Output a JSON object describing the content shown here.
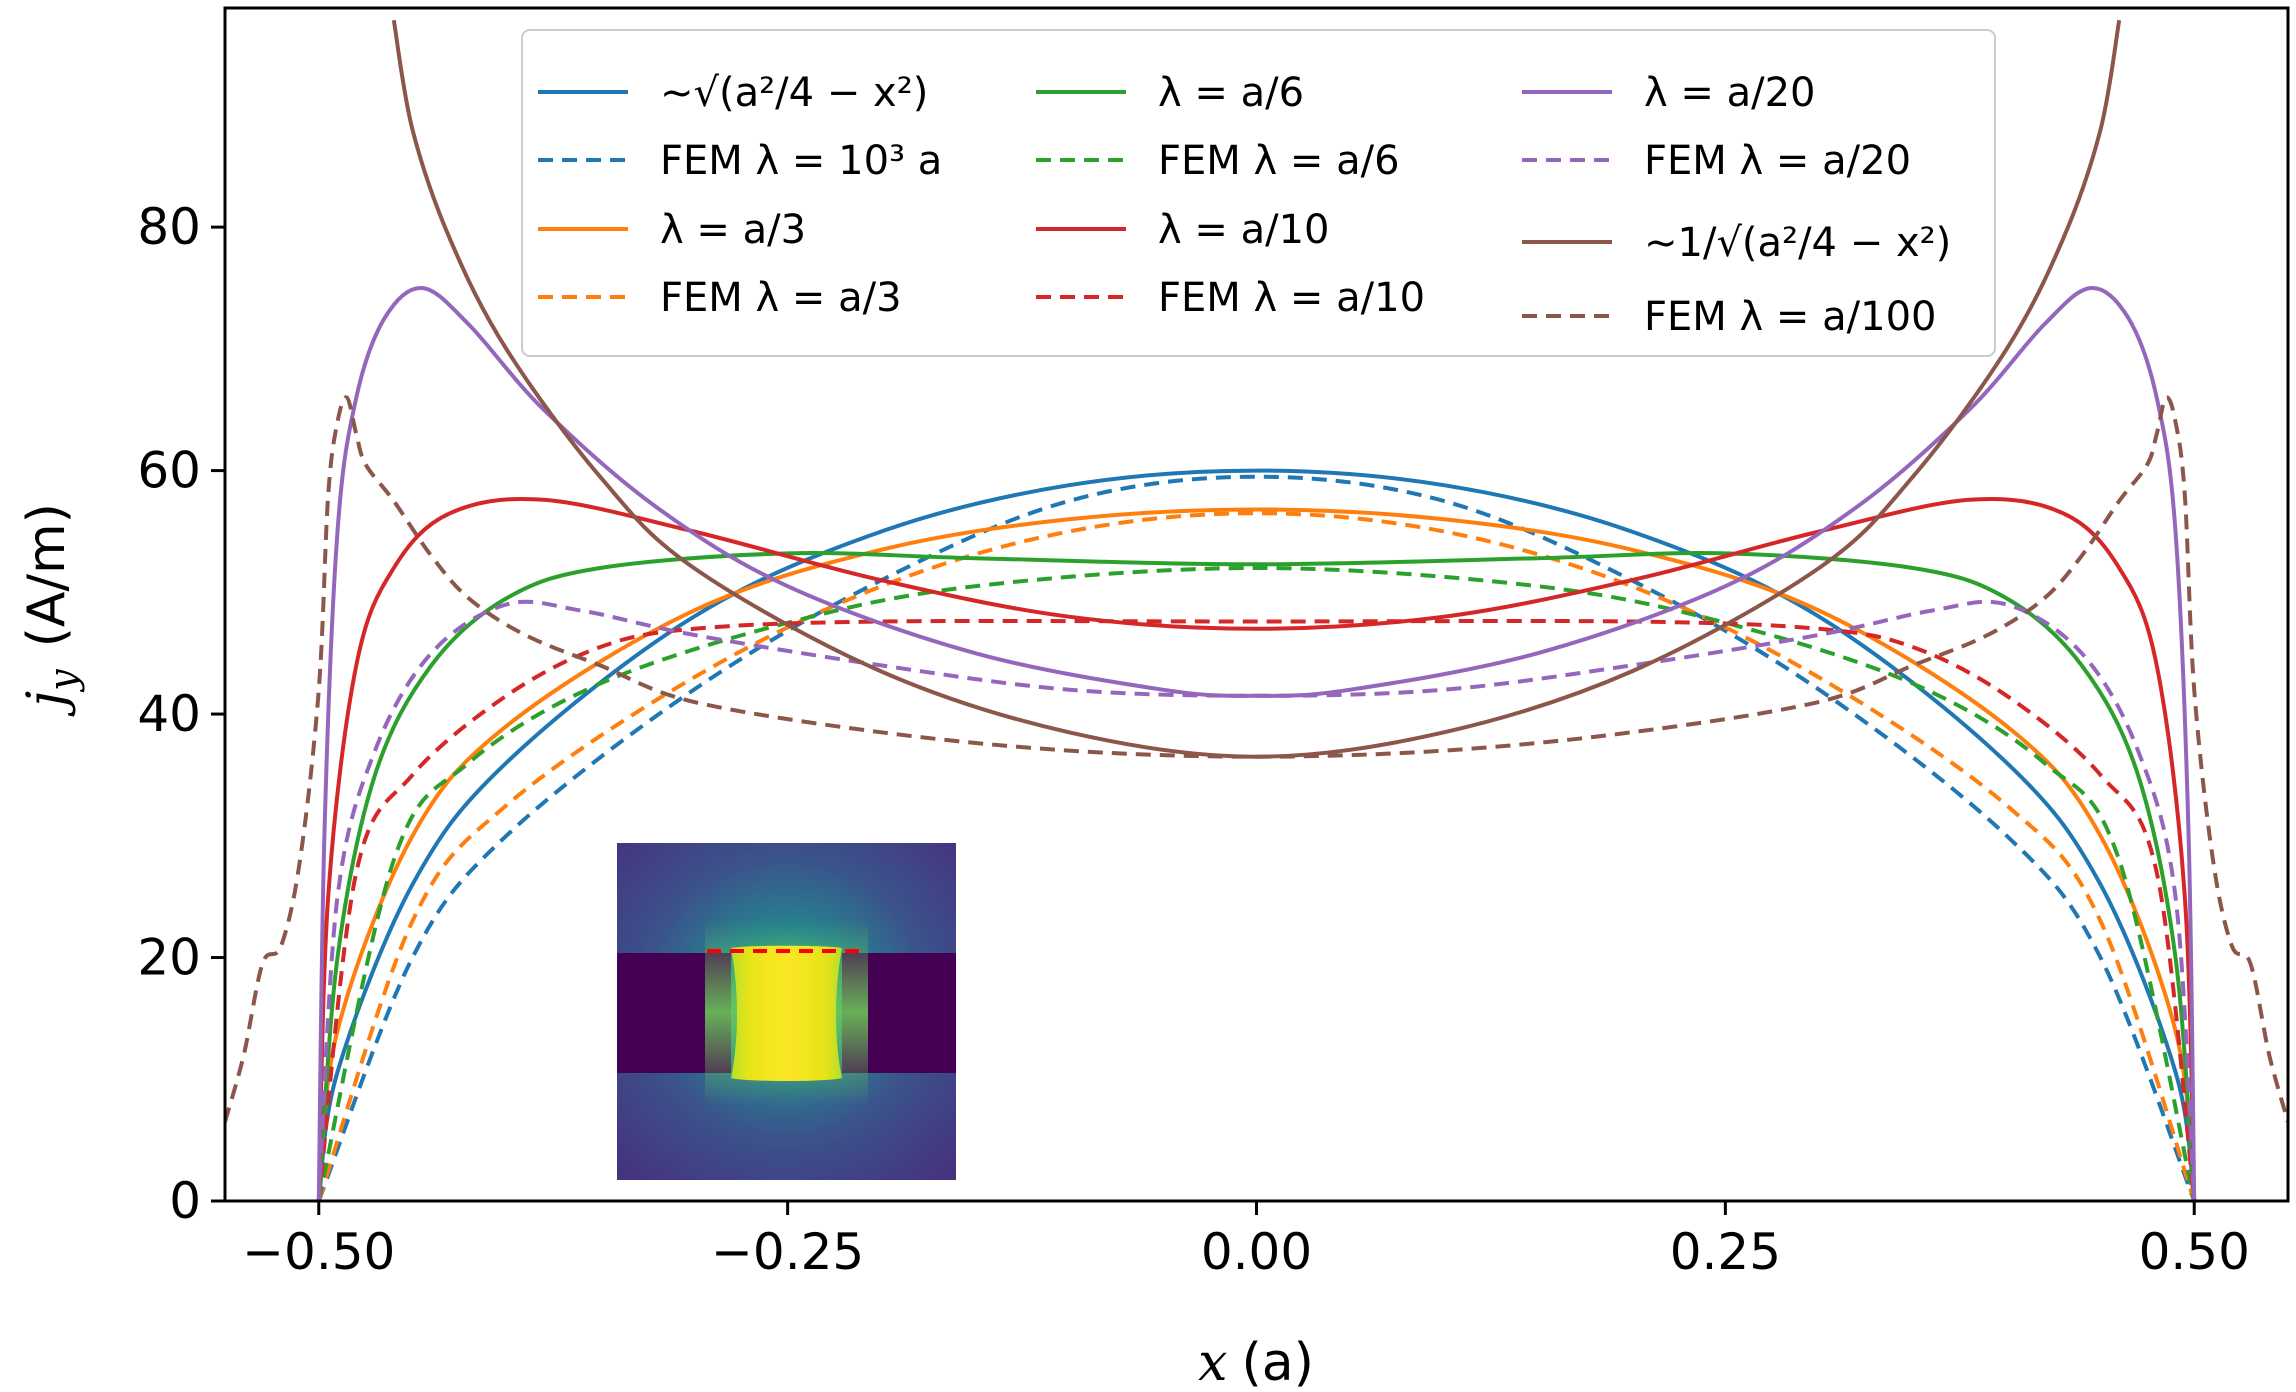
{
  "chart_data": {
    "type": "line",
    "xlabel_var": "x",
    "xlabel_unit": "(a)",
    "ylabel_var": "j",
    "ylabel_sub": "y",
    "ylabel_unit": "(A/m)",
    "xlim": [
      -0.55,
      0.55
    ],
    "ylim": [
      0,
      98
    ],
    "x_ticks": [
      -0.5,
      -0.25,
      0.0,
      0.25,
      0.5
    ],
    "x_tick_labels": [
      "−0.50",
      "−0.25",
      "0.00",
      "0.25",
      "0.50"
    ],
    "y_ticks": [
      0,
      20,
      40,
      60,
      80
    ],
    "y_tick_labels": [
      "0",
      "20",
      "40",
      "60",
      "80"
    ],
    "legend_position": "top",
    "series": [
      {
        "name": "~√(a²/4 − x²)",
        "color": "#1f77b4",
        "style": "solid",
        "samples": [
          [
            -0.5,
            0
          ],
          [
            -0.49,
            10.6
          ],
          [
            -0.45,
            26.0
          ],
          [
            -0.4,
            36.0
          ],
          [
            -0.3,
            48.0
          ],
          [
            -0.2,
            55.0
          ],
          [
            -0.1,
            58.8
          ],
          [
            0,
            60.0
          ],
          [
            0.1,
            58.8
          ],
          [
            0.2,
            55.0
          ],
          [
            0.3,
            48.0
          ],
          [
            0.4,
            36.0
          ],
          [
            0.45,
            26.0
          ],
          [
            0.49,
            10.6
          ],
          [
            0.5,
            0
          ]
        ]
      },
      {
        "name": "FEM λ = 10³ a",
        "color": "#1f77b4",
        "style": "dashed",
        "samples": [
          [
            -0.5,
            0
          ],
          [
            -0.45,
            20.0
          ],
          [
            -0.4,
            30.0
          ],
          [
            -0.3,
            42.0
          ],
          [
            -0.2,
            51.0
          ],
          [
            -0.1,
            57.5
          ],
          [
            0,
            59.5
          ],
          [
            0.1,
            57.5
          ],
          [
            0.2,
            51.0
          ],
          [
            0.3,
            42.0
          ],
          [
            0.4,
            30.0
          ],
          [
            0.45,
            20.0
          ],
          [
            0.5,
            0
          ]
        ]
      },
      {
        "name": "λ = a/3",
        "color": "#ff7f0e",
        "style": "solid",
        "samples": [
          [
            -0.5,
            0
          ],
          [
            -0.49,
            14.0
          ],
          [
            -0.45,
            30.0
          ],
          [
            -0.4,
            39.0
          ],
          [
            -0.3,
            48.5
          ],
          [
            -0.2,
            53.5
          ],
          [
            -0.1,
            56.0
          ],
          [
            0,
            56.8
          ],
          [
            0.1,
            56.0
          ],
          [
            0.2,
            53.5
          ],
          [
            0.3,
            48.5
          ],
          [
            0.4,
            39.0
          ],
          [
            0.45,
            30.0
          ],
          [
            0.49,
            14.0
          ],
          [
            0.5,
            0
          ]
        ]
      },
      {
        "name": "FEM λ = a/3",
        "color": "#ff7f0e",
        "style": "dashed",
        "samples": [
          [
            -0.5,
            0
          ],
          [
            -0.45,
            23.0
          ],
          [
            -0.4,
            32.5
          ],
          [
            -0.3,
            43.0
          ],
          [
            -0.2,
            50.5
          ],
          [
            -0.1,
            55.0
          ],
          [
            0,
            56.5
          ],
          [
            0.1,
            55.0
          ],
          [
            0.2,
            50.5
          ],
          [
            0.3,
            43.0
          ],
          [
            0.4,
            32.5
          ],
          [
            0.45,
            23.0
          ],
          [
            0.5,
            0
          ]
        ]
      },
      {
        "name": "λ = a/6",
        "color": "#2ca02c",
        "style": "solid",
        "samples": [
          [
            -0.5,
            0
          ],
          [
            -0.49,
            20.0
          ],
          [
            -0.47,
            35.0
          ],
          [
            -0.44,
            44.0
          ],
          [
            -0.4,
            49.5
          ],
          [
            -0.35,
            52.0
          ],
          [
            -0.25,
            53.2
          ],
          [
            -0.15,
            52.8
          ],
          [
            0,
            52.3
          ],
          [
            0.15,
            52.8
          ],
          [
            0.25,
            53.2
          ],
          [
            0.35,
            52.0
          ],
          [
            0.4,
            49.5
          ],
          [
            0.44,
            44.0
          ],
          [
            0.47,
            35.0
          ],
          [
            0.49,
            20.0
          ],
          [
            0.5,
            0
          ]
        ]
      },
      {
        "name": "FEM λ = a/6",
        "color": "#2ca02c",
        "style": "dashed",
        "samples": [
          [
            -0.5,
            0
          ],
          [
            -0.46,
            28.0
          ],
          [
            -0.42,
            36.0
          ],
          [
            -0.35,
            42.5
          ],
          [
            -0.25,
            47.5
          ],
          [
            -0.15,
            50.5
          ],
          [
            0,
            52.0
          ],
          [
            0.15,
            50.5
          ],
          [
            0.25,
            47.5
          ],
          [
            0.35,
            42.5
          ],
          [
            0.42,
            36.0
          ],
          [
            0.46,
            28.0
          ],
          [
            0.5,
            0
          ]
        ]
      },
      {
        "name": "λ = a/10",
        "color": "#d62728",
        "style": "solid",
        "samples": [
          [
            -0.5,
            0
          ],
          [
            -0.495,
            25.0
          ],
          [
            -0.48,
            44.0
          ],
          [
            -0.46,
            52.0
          ],
          [
            -0.43,
            56.5
          ],
          [
            -0.38,
            57.6
          ],
          [
            -0.3,
            55.0
          ],
          [
            -0.2,
            51.0
          ],
          [
            -0.1,
            48.0
          ],
          [
            0,
            47.0
          ],
          [
            0.1,
            48.0
          ],
          [
            0.2,
            51.0
          ],
          [
            0.3,
            55.0
          ],
          [
            0.38,
            57.6
          ],
          [
            0.43,
            56.5
          ],
          [
            0.46,
            52.0
          ],
          [
            0.48,
            44.0
          ],
          [
            0.495,
            25.0
          ],
          [
            0.5,
            0
          ]
        ]
      },
      {
        "name": "FEM λ = a/10",
        "color": "#d62728",
        "style": "dashed",
        "samples": [
          [
            -0.5,
            0
          ],
          [
            -0.48,
            27.0
          ],
          [
            -0.45,
            35.0
          ],
          [
            -0.4,
            41.5
          ],
          [
            -0.35,
            45.5
          ],
          [
            -0.3,
            47.0
          ],
          [
            -0.2,
            47.6
          ],
          [
            0,
            47.6
          ],
          [
            0.2,
            47.6
          ],
          [
            0.3,
            47.0
          ],
          [
            0.35,
            45.5
          ],
          [
            0.4,
            41.5
          ],
          [
            0.45,
            35.0
          ],
          [
            0.48,
            27.0
          ],
          [
            0.5,
            0
          ]
        ]
      },
      {
        "name": "λ = a/20",
        "color": "#9467bd",
        "style": "solid",
        "samples": [
          [
            -0.5,
            0
          ],
          [
            -0.497,
            30.0
          ],
          [
            -0.49,
            55.0
          ],
          [
            -0.48,
            66.0
          ],
          [
            -0.465,
            72.5
          ],
          [
            -0.445,
            75.0
          ],
          [
            -0.42,
            72.0
          ],
          [
            -0.38,
            65.0
          ],
          [
            -0.32,
            57.0
          ],
          [
            -0.25,
            50.5
          ],
          [
            -0.15,
            45.0
          ],
          [
            -0.05,
            42.0
          ],
          [
            0,
            41.5
          ],
          [
            0.05,
            42.0
          ],
          [
            0.15,
            45.0
          ],
          [
            0.25,
            50.5
          ],
          [
            0.32,
            57.0
          ],
          [
            0.38,
            65.0
          ],
          [
            0.42,
            72.0
          ],
          [
            0.445,
            75.0
          ],
          [
            0.465,
            72.5
          ],
          [
            0.48,
            66.0
          ],
          [
            0.49,
            55.0
          ],
          [
            0.497,
            30.0
          ],
          [
            0.5,
            0
          ]
        ]
      },
      {
        "name": "FEM λ = a/20",
        "color": "#9467bd",
        "style": "dashed",
        "samples": [
          [
            -0.5,
            0
          ],
          [
            -0.49,
            25.0
          ],
          [
            -0.47,
            37.0
          ],
          [
            -0.44,
            45.0
          ],
          [
            -0.4,
            49.0
          ],
          [
            -0.36,
            48.5
          ],
          [
            -0.3,
            46.5
          ],
          [
            -0.2,
            44.0
          ],
          [
            -0.1,
            42.0
          ],
          [
            0,
            41.5
          ],
          [
            0.1,
            42.0
          ],
          [
            0.2,
            44.0
          ],
          [
            0.3,
            46.5
          ],
          [
            0.36,
            48.5
          ],
          [
            0.4,
            49.0
          ],
          [
            0.44,
            45.0
          ],
          [
            0.47,
            37.0
          ],
          [
            0.49,
            25.0
          ],
          [
            0.5,
            0
          ]
        ]
      },
      {
        "name": "~1/√(a²/4 − x²)",
        "color": "#8c564b",
        "style": "solid",
        "samples": [
          [
            -0.46,
            97.0
          ],
          [
            -0.45,
            88.0
          ],
          [
            -0.43,
            79.0
          ],
          [
            -0.4,
            70.0
          ],
          [
            -0.35,
            59.5
          ],
          [
            -0.3,
            52.0
          ],
          [
            -0.2,
            43.5
          ],
          [
            -0.1,
            38.5
          ],
          [
            0,
            36.5
          ],
          [
            0.1,
            38.5
          ],
          [
            0.2,
            43.5
          ],
          [
            0.3,
            52.0
          ],
          [
            0.35,
            59.5
          ],
          [
            0.4,
            70.0
          ],
          [
            0.43,
            79.0
          ],
          [
            0.45,
            88.0
          ],
          [
            0.46,
            97.0
          ]
        ]
      },
      {
        "name": "FEM λ = a/100",
        "color": "#8c564b",
        "style": "dashed",
        "samples": [
          [
            -0.55,
            6.5
          ],
          [
            -0.54,
            12.0
          ],
          [
            -0.53,
            19.5
          ],
          [
            -0.52,
            21.0
          ],
          [
            -0.51,
            28.0
          ],
          [
            -0.5,
            42.0
          ],
          [
            -0.495,
            58.0
          ],
          [
            -0.49,
            64.0
          ],
          [
            -0.485,
            66.0
          ],
          [
            -0.48,
            63.0
          ],
          [
            -0.475,
            60.5
          ],
          [
            -0.46,
            57.5
          ],
          [
            -0.44,
            53.0
          ],
          [
            -0.42,
            49.5
          ],
          [
            -0.39,
            46.5
          ],
          [
            -0.35,
            44.0
          ],
          [
            -0.3,
            41.0
          ],
          [
            -0.2,
            38.5
          ],
          [
            -0.1,
            37.0
          ],
          [
            0,
            36.5
          ],
          [
            0.1,
            37.0
          ],
          [
            0.2,
            38.5
          ],
          [
            0.3,
            41.0
          ],
          [
            0.35,
            44.0
          ],
          [
            0.39,
            46.5
          ],
          [
            0.42,
            49.5
          ],
          [
            0.44,
            53.0
          ],
          [
            0.46,
            57.5
          ],
          [
            0.475,
            60.5
          ],
          [
            0.48,
            63.0
          ],
          [
            0.485,
            66.0
          ],
          [
            0.49,
            64.0
          ],
          [
            0.495,
            58.0
          ],
          [
            0.5,
            42.0
          ],
          [
            0.51,
            28.0
          ],
          [
            0.52,
            21.0
          ],
          [
            0.53,
            19.5
          ],
          [
            0.54,
            12.0
          ],
          [
            0.55,
            6.5
          ]
        ]
      }
    ],
    "inset": {
      "type": "heatmap",
      "colormap": "viridis",
      "marker_color": "#ff0000"
    }
  }
}
